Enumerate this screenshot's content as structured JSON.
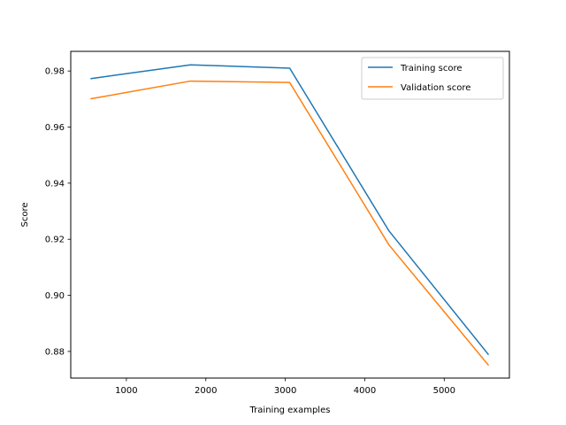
{
  "chart_data": {
    "type": "line",
    "title": "",
    "xlabel": "Training examples",
    "ylabel": "Score",
    "xlim": [
      300,
      5820
    ],
    "ylim": [
      0.8705,
      0.987
    ],
    "xticks": [
      1000,
      2000,
      3000,
      4000,
      5000
    ],
    "xtick_labels": [
      "1000",
      "2000",
      "3000",
      "4000",
      "5000"
    ],
    "yticks": [
      0.88,
      0.9,
      0.92,
      0.94,
      0.96,
      0.98
    ],
    "ytick_labels": [
      "0.88",
      "0.90",
      "0.92",
      "0.94",
      "0.96",
      "0.98"
    ],
    "grid": false,
    "legend_position": "top-right",
    "x": [
      557,
      1806,
      3055,
      4304,
      5553
    ],
    "series": [
      {
        "name": "Training score",
        "color": "#1f77b4",
        "values": [
          0.9773,
          0.9822,
          0.981,
          0.923,
          0.879
        ]
      },
      {
        "name": "Validation score",
        "color": "#ff7f0e",
        "values": [
          0.9701,
          0.9764,
          0.9759,
          0.918,
          0.8752
        ]
      }
    ]
  }
}
